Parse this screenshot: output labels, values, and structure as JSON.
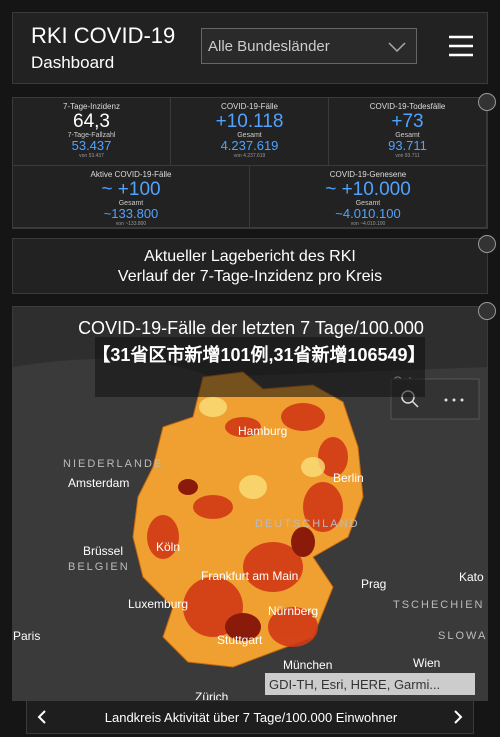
{
  "header": {
    "title": "RKI COVID-19",
    "subtitle": "Dashboard",
    "region_select": "Alle Bundesländer"
  },
  "stats": [
    {
      "label": "7-Tage-Inzidenz",
      "value": "64,3",
      "sub_label": "7-Tage-Fallzahl",
      "sub_value": "53.437",
      "note": "von 53.437"
    },
    {
      "label": "COVID-19-Fälle",
      "value": "+10.118",
      "sub_label": "Gesamt",
      "sub_value": "4.237.619",
      "note": "von 4.237.619"
    },
    {
      "label": "COVID-19-Todesfälle",
      "value": "+73",
      "sub_label": "Gesamt",
      "sub_value": "93.711",
      "note": "von 93.711"
    },
    {
      "label": "Aktive COVID-19-Fälle",
      "value": "~ +100",
      "sub_label": "Gesamt",
      "sub_value": "~133.800",
      "note": "von ~133.800"
    },
    {
      "label": "COVID-19-Genesene",
      "value": "~ +10.000",
      "sub_label": "Gesamt",
      "sub_value": "~4.010.100",
      "note": "von ~4.010.100"
    }
  ],
  "report": {
    "line1": "Aktueller Lagebericht des RKI",
    "line2": "Verlauf der 7-Tage-Inzidenz pro Kreis"
  },
  "map": {
    "title": "COVID-19-Fälle der letzten 7 Tage/100.000",
    "overlay": "【31省区市新增101例,31省新增106549】",
    "labels": [
      "Ostsee",
      "Hamburg",
      "NIEDERLANDE",
      "Amsterdam",
      "Berlin",
      "DEUTSCHLAND",
      "Brüssel",
      "BELGIEN",
      "Köln",
      "Frankfurt am Main",
      "Luxemburg",
      "Nürnberg",
      "Prag",
      "TSCHECHIEN",
      "Paris",
      "Stuttgart",
      "München",
      "Wien",
      "SLOWA",
      "Kato",
      "Zürich"
    ],
    "attribution": "GDI-TH, Esri, HERE, Garmi..."
  },
  "footer": {
    "caption": "Landkreis Aktivität über 7 Tage/100.000 Einwohner"
  }
}
